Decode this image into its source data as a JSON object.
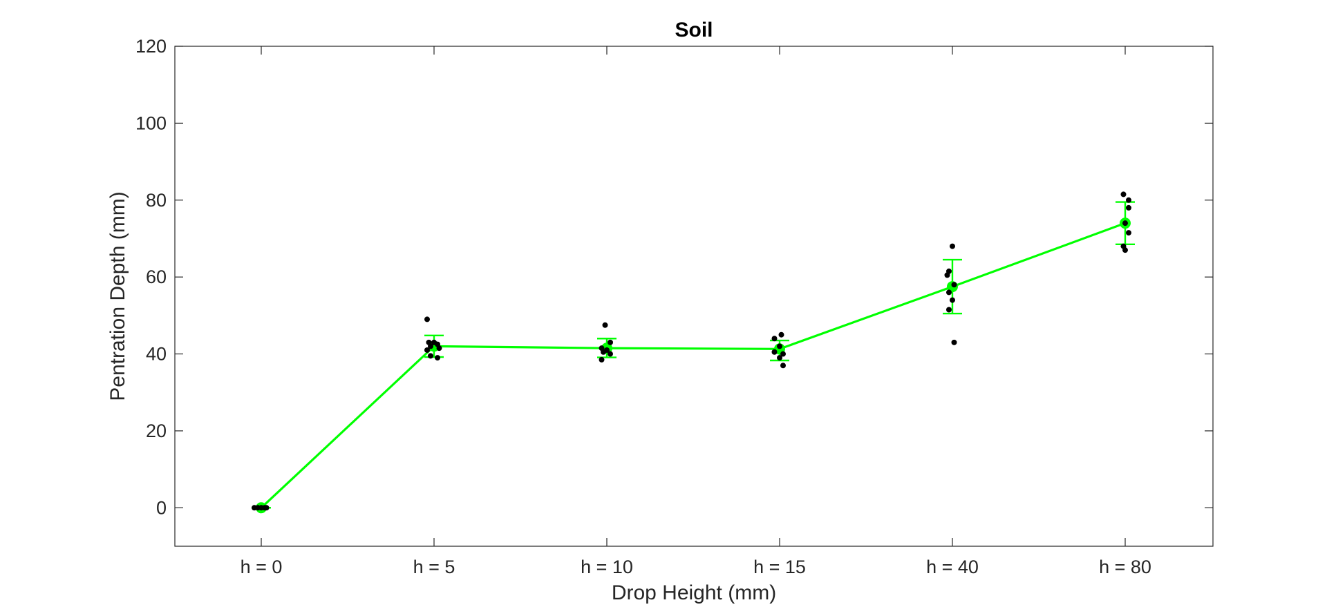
{
  "chart_data": {
    "type": "scatter",
    "title": "Soil",
    "xlabel": "Drop Height (mm)",
    "ylabel": "Pentration Depth (mm)",
    "ylim": [
      -10,
      120
    ],
    "yticks": [
      0,
      20,
      40,
      60,
      80,
      100,
      120
    ],
    "categories": [
      "h = 0",
      "h = 5",
      "h = 10",
      "h = 15",
      "h = 40",
      "h = 80"
    ],
    "grid": false,
    "mean_series": {
      "color": "#00ff00",
      "values": [
        0,
        42,
        41.5,
        41.3,
        57.5,
        74
      ],
      "error_low": [
        0,
        39.2,
        39.1,
        38.3,
        50.5,
        68.5
      ],
      "error_high": [
        0,
        44.8,
        44.0,
        43.5,
        64.5,
        79.5
      ]
    },
    "points_series": {
      "color": "#000000",
      "points": [
        {
          "cat": 0,
          "jitter": -0.04,
          "y": 0
        },
        {
          "cat": 0,
          "jitter": -0.02,
          "y": 0
        },
        {
          "cat": 0,
          "jitter": 0.0,
          "y": 0
        },
        {
          "cat": 0,
          "jitter": 0.02,
          "y": 0
        },
        {
          "cat": 0,
          "jitter": 0.03,
          "y": 0
        },
        {
          "cat": 1,
          "jitter": -0.04,
          "y": 49
        },
        {
          "cat": 1,
          "jitter": -0.03,
          "y": 43
        },
        {
          "cat": 1,
          "jitter": 0.0,
          "y": 43
        },
        {
          "cat": 1,
          "jitter": 0.02,
          "y": 42.5
        },
        {
          "cat": 1,
          "jitter": -0.02,
          "y": 42
        },
        {
          "cat": 1,
          "jitter": 0.03,
          "y": 41.5
        },
        {
          "cat": 1,
          "jitter": -0.04,
          "y": 41
        },
        {
          "cat": 1,
          "jitter": -0.02,
          "y": 39.5
        },
        {
          "cat": 1,
          "jitter": 0.02,
          "y": 39
        },
        {
          "cat": 2,
          "jitter": -0.01,
          "y": 47.5
        },
        {
          "cat": 2,
          "jitter": 0.02,
          "y": 43
        },
        {
          "cat": 2,
          "jitter": -0.03,
          "y": 41.5
        },
        {
          "cat": 2,
          "jitter": 0.0,
          "y": 41
        },
        {
          "cat": 2,
          "jitter": -0.02,
          "y": 40.5
        },
        {
          "cat": 2,
          "jitter": 0.02,
          "y": 40
        },
        {
          "cat": 2,
          "jitter": -0.03,
          "y": 38.5
        },
        {
          "cat": 3,
          "jitter": 0.01,
          "y": 45
        },
        {
          "cat": 3,
          "jitter": -0.03,
          "y": 44
        },
        {
          "cat": 3,
          "jitter": 0.0,
          "y": 42
        },
        {
          "cat": 3,
          "jitter": -0.03,
          "y": 40.5
        },
        {
          "cat": 3,
          "jitter": 0.02,
          "y": 40
        },
        {
          "cat": 3,
          "jitter": 0.0,
          "y": 39
        },
        {
          "cat": 3,
          "jitter": 0.02,
          "y": 37
        },
        {
          "cat": 4,
          "jitter": 0.0,
          "y": 68
        },
        {
          "cat": 4,
          "jitter": -0.02,
          "y": 61.5
        },
        {
          "cat": 4,
          "jitter": -0.03,
          "y": 60.5
        },
        {
          "cat": 4,
          "jitter": 0.01,
          "y": 58
        },
        {
          "cat": 4,
          "jitter": -0.02,
          "y": 56
        },
        {
          "cat": 4,
          "jitter": 0.0,
          "y": 54
        },
        {
          "cat": 4,
          "jitter": -0.02,
          "y": 51.5
        },
        {
          "cat": 4,
          "jitter": 0.01,
          "y": 43
        },
        {
          "cat": 5,
          "jitter": -0.01,
          "y": 81.5
        },
        {
          "cat": 5,
          "jitter": 0.02,
          "y": 80
        },
        {
          "cat": 5,
          "jitter": 0.02,
          "y": 78
        },
        {
          "cat": 5,
          "jitter": 0.0,
          "y": 74
        },
        {
          "cat": 5,
          "jitter": 0.02,
          "y": 71.5
        },
        {
          "cat": 5,
          "jitter": -0.01,
          "y": 68
        },
        {
          "cat": 5,
          "jitter": 0.0,
          "y": 67
        }
      ]
    }
  }
}
